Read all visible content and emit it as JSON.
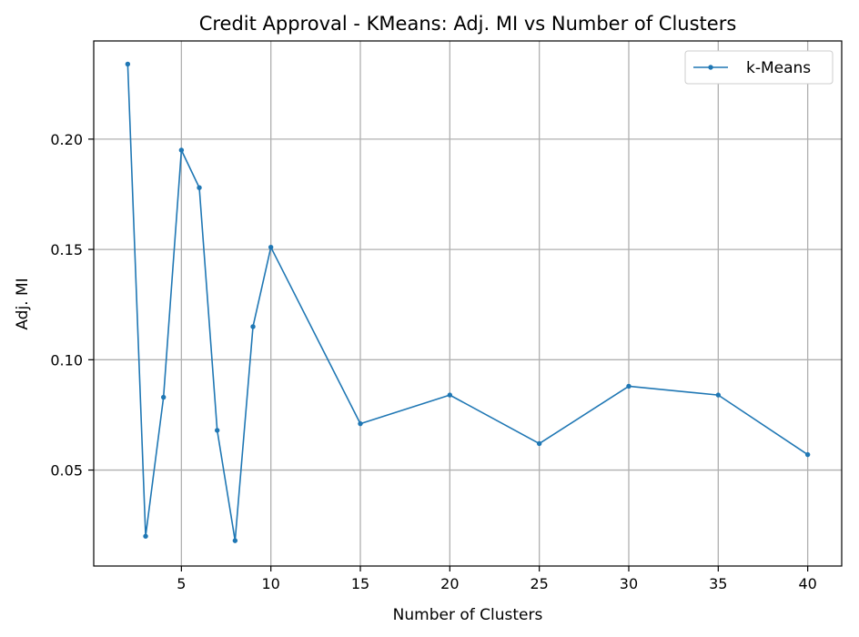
{
  "chart_data": {
    "type": "line",
    "title": "Credit Approval - KMeans: Adj. MI vs Number of Clusters",
    "xlabel": "Number of Clusters",
    "ylabel": "Adj. MI",
    "xlim": [
      0.1,
      41.9
    ],
    "ylim": [
      0.0065,
      0.2445
    ],
    "xticks": [
      5,
      10,
      15,
      20,
      25,
      30,
      35,
      40
    ],
    "yticks": [
      0.05,
      0.1,
      0.15,
      0.2
    ],
    "ytick_labels": [
      "0.05",
      "0.10",
      "0.15",
      "0.20"
    ],
    "grid": true,
    "legend_position": "top-right",
    "series": [
      {
        "name": "k-Means",
        "color": "#1f77b4",
        "marker": "circle",
        "x": [
          2,
          3,
          4,
          5,
          6,
          7,
          8,
          9,
          10,
          15,
          20,
          25,
          30,
          35,
          40
        ],
        "y": [
          0.234,
          0.02,
          0.083,
          0.195,
          0.178,
          0.068,
          0.018,
          0.115,
          0.151,
          0.071,
          0.084,
          0.062,
          0.088,
          0.084,
          0.057
        ]
      }
    ]
  }
}
